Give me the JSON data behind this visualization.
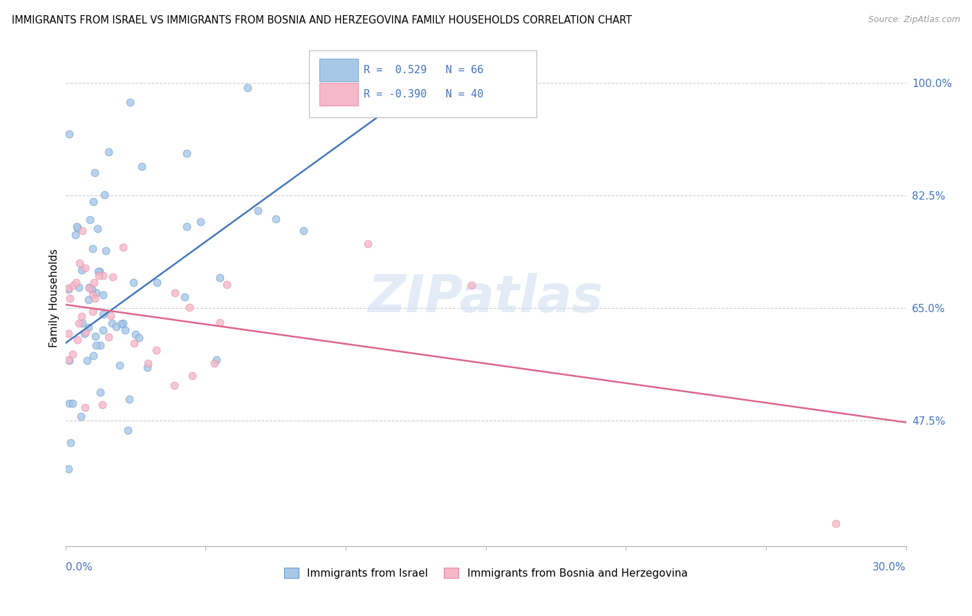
{
  "title": "IMMIGRANTS FROM ISRAEL VS IMMIGRANTS FROM BOSNIA AND HERZEGOVINA FAMILY HOUSEHOLDS CORRELATION CHART",
  "source": "Source: ZipAtlas.com",
  "ylabel": "Family Households",
  "ytick_vals": [
    0.475,
    0.65,
    0.825,
    1.0
  ],
  "ytick_labels": [
    "47.5%",
    "65.0%",
    "82.5%",
    "100.0%"
  ],
  "xlim": [
    0.0,
    0.3
  ],
  "ylim": [
    0.28,
    1.05
  ],
  "legend_R1": "R =  0.529",
  "legend_N1": "N = 66",
  "legend_R2": "R = -0.390",
  "legend_N2": "N = 40",
  "color_israel": "#a8c8e8",
  "color_bosnia": "#f4b8c8",
  "color_israel_edge": "#6699cc",
  "color_bosnia_edge": "#e888a8",
  "color_israel_line": "#4477bb",
  "color_bosnia_line": "#dd6688",
  "color_axis_labels": "#4472c4",
  "watermark_color": "#d0dff0",
  "israel_line_x0": 0.0,
  "israel_line_y0": 0.595,
  "israel_line_x1": 0.13,
  "israel_line_y1": 1.005,
  "bosnia_line_x0": 0.0,
  "bosnia_line_y0": 0.655,
  "bosnia_line_x1": 0.3,
  "bosnia_line_y1": 0.472
}
